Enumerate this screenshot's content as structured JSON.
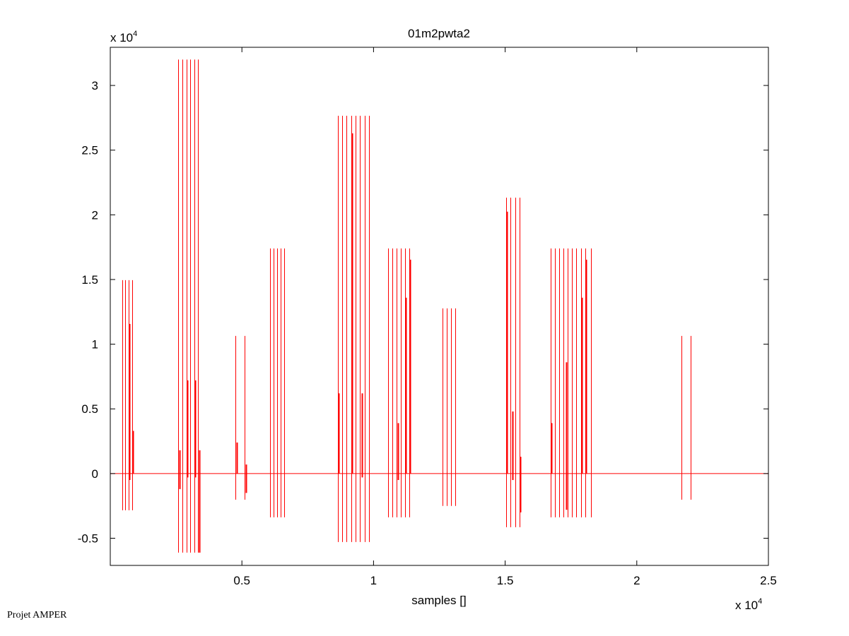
{
  "chart_data": {
    "type": "line",
    "title": "01m2pwta2",
    "xlabel": "samples []",
    "ylabel": "",
    "x_multiplier": "x 10",
    "x_multiplier_exp": "4",
    "y_multiplier": "x 10",
    "y_multiplier_exp": "4",
    "xlim": [
      0,
      25000
    ],
    "ylim": [
      -7100,
      32950
    ],
    "scale": 10000,
    "xticks": [
      5000,
      10000,
      15000,
      20000,
      25000
    ],
    "xtick_labels": [
      "0.5",
      "1",
      "1.5",
      "2",
      "2.5"
    ],
    "yticks": [
      -5000,
      0,
      5000,
      10000,
      15000,
      20000,
      25000,
      30000
    ],
    "ytick_labels": [
      "-0.5",
      "0",
      "0.5",
      "1",
      "1.5",
      "2",
      "2.5",
      "3"
    ],
    "grid": false,
    "line_color": "#ff0000",
    "baseline": 0,
    "spikes": [
      [
        457,
        -2840,
        14950
      ],
      [
        565,
        -2840,
        14950
      ],
      [
        699,
        -2840,
        14950
      ],
      [
        833,
        -2840,
        14950
      ],
      [
        2580,
        -6110,
        32000
      ],
      [
        2742,
        -6110,
        32000
      ],
      [
        2903,
        -6110,
        32000
      ],
      [
        3038,
        -6110,
        32000
      ],
      [
        3199,
        -6110,
        32000
      ],
      [
        3333,
        -6110,
        32000
      ],
      [
        4758,
        -2020,
        10640
      ],
      [
        5108,
        -2020,
        10640
      ],
      [
        6075,
        -3380,
        17400
      ],
      [
        6210,
        -3380,
        17400
      ],
      [
        6344,
        -3380,
        17400
      ],
      [
        6478,
        -3380,
        17400
      ],
      [
        6613,
        -3380,
        17400
      ],
      [
        8656,
        -5290,
        27660
      ],
      [
        8817,
        -5290,
        27660
      ],
      [
        8978,
        -5290,
        27660
      ],
      [
        9167,
        -5290,
        27660
      ],
      [
        9328,
        -5290,
        27660
      ],
      [
        9489,
        -5290,
        27660
      ],
      [
        9677,
        -5290,
        27660
      ],
      [
        9839,
        -5290,
        27660
      ],
      [
        10565,
        -3380,
        17400
      ],
      [
        10726,
        -3380,
        17400
      ],
      [
        10887,
        -3380,
        17400
      ],
      [
        11048,
        -3380,
        17400
      ],
      [
        11210,
        -3380,
        17400
      ],
      [
        11371,
        -3380,
        17400
      ],
      [
        12608,
        -2500,
        12770
      ],
      [
        12769,
        -2500,
        12770
      ],
      [
        12930,
        -2500,
        12770
      ],
      [
        13091,
        -2500,
        12770
      ],
      [
        15027,
        -4150,
        21330
      ],
      [
        15188,
        -4150,
        21330
      ],
      [
        15376,
        -4150,
        21330
      ],
      [
        15537,
        -4150,
        21330
      ],
      [
        16720,
        -3380,
        17400
      ],
      [
        16881,
        -3380,
        17400
      ],
      [
        17043,
        -3380,
        17400
      ],
      [
        17204,
        -3380,
        17400
      ],
      [
        17366,
        -3380,
        17400
      ],
      [
        17527,
        -3380,
        17400
      ],
      [
        17688,
        -3380,
        17400
      ],
      [
        17876,
        -3380,
        17400
      ],
      [
        18037,
        -3380,
        17400
      ],
      [
        18252,
        -3380,
        17400
      ],
      [
        21693,
        -2020,
        10640
      ],
      [
        22043,
        -2020,
        10640
      ]
    ],
    "inner_spikes": [
      [
        699,
        -500,
        11570
      ],
      [
        833,
        0,
        3300
      ],
      [
        2903,
        -300,
        7200
      ],
      [
        3199,
        -300,
        7200
      ],
      [
        2600,
        -1200,
        1800
      ],
      [
        3360,
        -6110,
        1800
      ],
      [
        4790,
        0,
        2400
      ],
      [
        5130,
        -1500,
        700
      ],
      [
        8640,
        0,
        6200
      ],
      [
        9167,
        0,
        26300
      ],
      [
        9540,
        -300,
        6200
      ],
      [
        10900,
        -500,
        3900
      ],
      [
        11210,
        0,
        13590
      ],
      [
        11371,
        0,
        16530
      ],
      [
        15050,
        0,
        20240
      ],
      [
        15240,
        -500,
        4800
      ],
      [
        15560,
        -3000,
        1300
      ],
      [
        16740,
        0,
        3900
      ],
      [
        17300,
        -2800,
        8600
      ],
      [
        17876,
        0,
        13590
      ],
      [
        18037,
        0,
        16530
      ]
    ],
    "footer": "Projet AMPER"
  }
}
